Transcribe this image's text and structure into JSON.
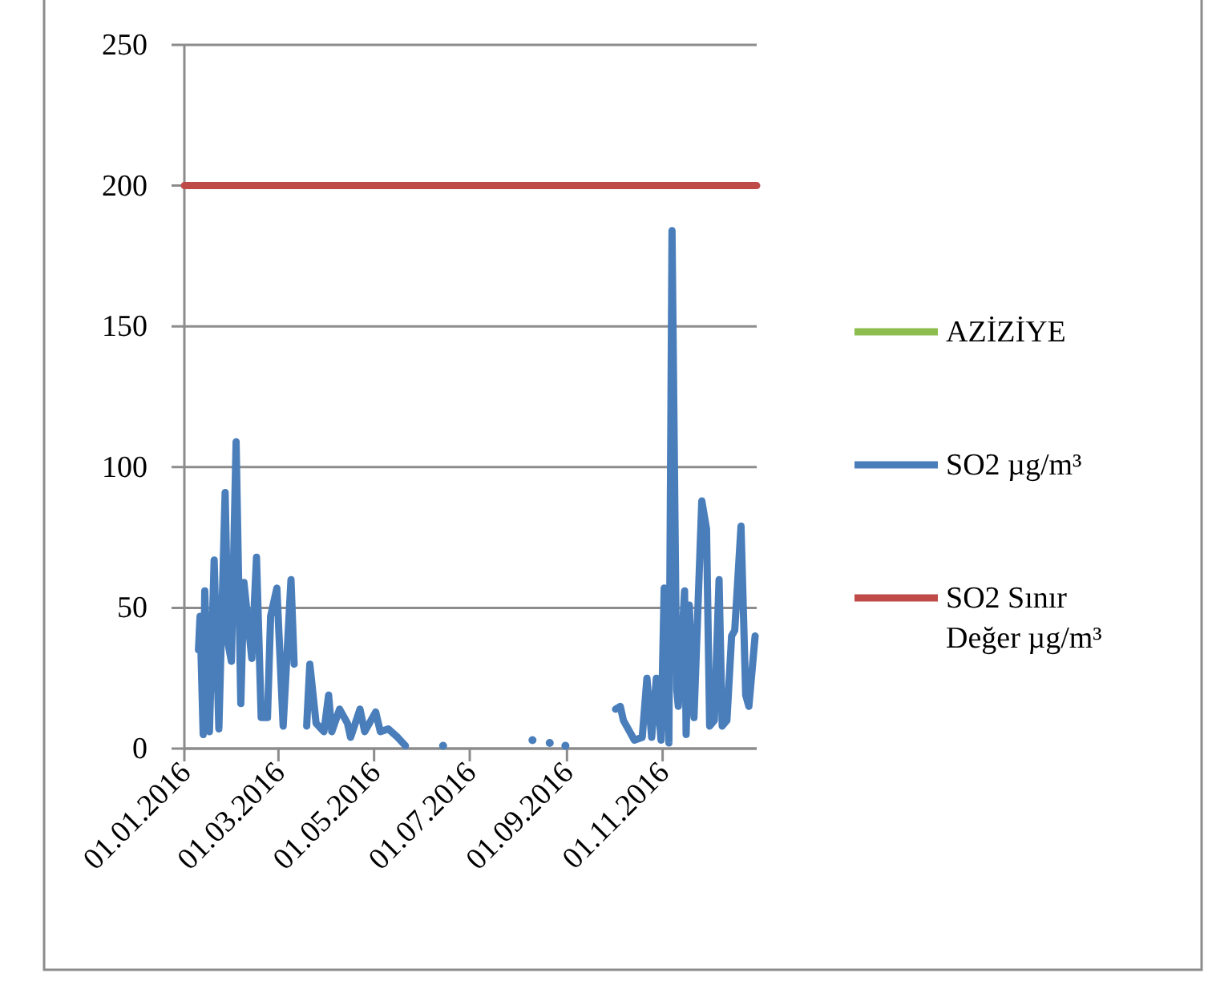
{
  "chart_data": {
    "type": "line",
    "legend": "right",
    "grid": "y",
    "xlim": [
      "2016-01-01",
      "2016-12-31"
    ],
    "ylim": [
      0,
      250
    ],
    "xticks": [
      {
        "value": "2016-01-01",
        "label": "01.01.2016"
      },
      {
        "value": "2016-03-01",
        "label": "01.03.2016"
      },
      {
        "value": "2016-05-01",
        "label": "01.05.2016"
      },
      {
        "value": "2016-07-01",
        "label": "01.07.2016"
      },
      {
        "value": "2016-09-01",
        "label": "01.09.2016"
      },
      {
        "value": "2016-11-01",
        "label": "01.11.2016"
      }
    ],
    "yticks": [
      0,
      50,
      100,
      150,
      200,
      250
    ],
    "series": [
      {
        "name": "AZİZİYE",
        "color": "#8cbd4e"
      },
      {
        "name": "SO2 µg/m³",
        "color": "#4a7ebb",
        "x": [
          "2016-01-10",
          "2016-01-11",
          "2016-01-13",
          "2016-01-14",
          "2016-01-17",
          "2016-01-20",
          "2016-01-23",
          "2016-01-27",
          "2016-01-29",
          "2016-01-31",
          "2016-02-03",
          "2016-02-06",
          "2016-02-08",
          "2016-02-13",
          "2016-02-16",
          "2016-02-19",
          "2016-02-23",
          "2016-02-25",
          "2016-02-29",
          "2016-03-04",
          "2016-03-09",
          "2016-03-11",
          "2016-03-15",
          "2016-03-19",
          "2016-03-21",
          "2016-03-25",
          "2016-03-30",
          "2016-04-02",
          "2016-04-04",
          "2016-04-09",
          "2016-04-14",
          "2016-04-16",
          "2016-04-22",
          "2016-04-25",
          "2016-05-02",
          "2016-05-05",
          "2016-05-10",
          "2016-05-16",
          "2016-05-21",
          "2016-06-01",
          "2016-06-14",
          "2016-07-15",
          "2016-08-10",
          "2016-08-15",
          "2016-08-21",
          "2016-08-26",
          "2016-08-31",
          "2016-09-20",
          "2016-10-02",
          "2016-10-05",
          "2016-10-07",
          "2016-10-10",
          "2016-10-14",
          "2016-10-19",
          "2016-10-22",
          "2016-10-25",
          "2016-10-28",
          "2016-10-31",
          "2016-11-02",
          "2016-11-05",
          "2016-11-07",
          "2016-11-10",
          "2016-11-11",
          "2016-11-15",
          "2016-11-16",
          "2016-11-18",
          "2016-11-21",
          "2016-11-26",
          "2016-11-29",
          "2016-12-01",
          "2016-12-04",
          "2016-12-07",
          "2016-12-09",
          "2016-12-12",
          "2016-12-15",
          "2016-12-17",
          "2016-12-21",
          "2016-12-24",
          "2016-12-26",
          "2016-12-30"
        ],
        "values": [
          35,
          47,
          5,
          56,
          6,
          67,
          7,
          91,
          37,
          31,
          109,
          16,
          59,
          32,
          68,
          11,
          11,
          47,
          57,
          8,
          60,
          30,
          null,
          8,
          30,
          9,
          6,
          19,
          6,
          14,
          9,
          4,
          14,
          6,
          13,
          6,
          7,
          4,
          1,
          null,
          1,
          null,
          3,
          null,
          2,
          null,
          1,
          null,
          14,
          15,
          10,
          7,
          3,
          4,
          25,
          4,
          25,
          3,
          57,
          2,
          184,
          21,
          15,
          56,
          5,
          51,
          11,
          88,
          78,
          8,
          10,
          60,
          8,
          10,
          40,
          42,
          79,
          19,
          15,
          40
        ]
      },
      {
        "name": "SO2 Sınır Değer µg/m³",
        "color": "#be4b48",
        "x": [
          "2016-01-01",
          "2016-12-31"
        ],
        "values": [
          200,
          200
        ]
      }
    ]
  }
}
